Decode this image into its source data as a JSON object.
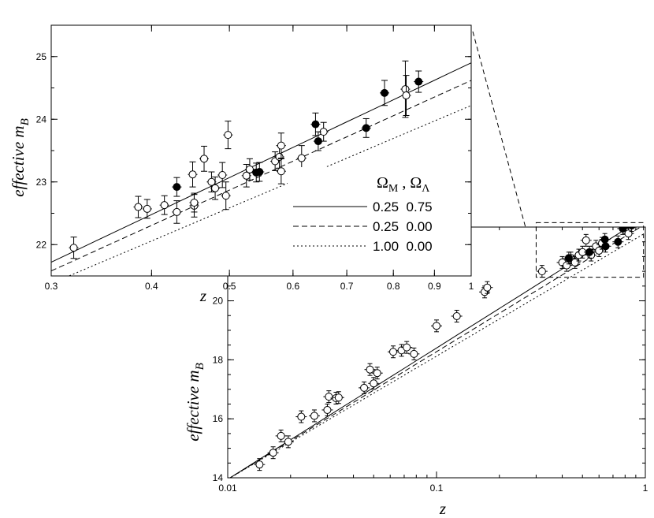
{
  "chart_data": [
    {
      "panel": "inset",
      "type": "scatter",
      "xlabel": "z",
      "ylabel": "effective m",
      "ylabel_sub": "B",
      "xscale": "log",
      "xlim": [
        0.3,
        1.0
      ],
      "ylim": [
        21.5,
        25.5
      ],
      "x_ticks": [
        0.3,
        0.4,
        0.5,
        0.6,
        0.7,
        0.8,
        0.9,
        1
      ],
      "x_tick_labels": [
        "0.3",
        "0.4",
        "0.5",
        "0.6",
        "0.7",
        "0.8",
        "0.9",
        "1"
      ],
      "y_ticks": [
        22,
        23,
        24,
        25
      ],
      "y_tick_labels": [
        "22",
        "23",
        "24",
        "25"
      ],
      "grid": false,
      "legend": {
        "placement": "lower-right",
        "header": {
          "sym1": "Ω",
          "sub1": "M",
          "sep": " , ",
          "sym2": "Ω",
          "sub2": "Λ"
        },
        "entries": [
          {
            "style": "solid",
            "label": "0.25  0.75"
          },
          {
            "style": "dashed",
            "label": "0.25  0.00"
          },
          {
            "style": "dotted",
            "label": "1.00  0.00"
          }
        ]
      },
      "series": [
        {
          "filled": false,
          "points": [
            [
              0.32,
              21.95,
              0.17
            ],
            [
              0.385,
              22.6,
              0.17
            ],
            [
              0.395,
              22.57,
              0.15
            ],
            [
              0.415,
              22.63,
              0.15
            ],
            [
              0.43,
              22.52,
              0.18
            ],
            [
              0.45,
              23.12,
              0.2
            ],
            [
              0.452,
              22.62,
              0.18
            ],
            [
              0.452,
              22.67,
              0.15
            ],
            [
              0.465,
              23.37,
              0.2
            ],
            [
              0.475,
              23.0,
              0.16
            ],
            [
              0.48,
              22.9,
              0.18
            ],
            [
              0.49,
              23.11,
              0.2
            ],
            [
              0.495,
              22.78,
              0.22
            ],
            [
              0.498,
              23.75,
              0.22
            ],
            [
              0.525,
              23.1,
              0.18
            ],
            [
              0.53,
              23.2,
              0.17
            ],
            [
              0.57,
              23.33,
              0.15
            ],
            [
              0.577,
              23.4,
              0.18
            ],
            [
              0.58,
              23.58,
              0.2
            ],
            [
              0.58,
              23.17,
              0.2
            ],
            [
              0.615,
              23.38,
              0.2
            ],
            [
              0.655,
              23.8,
              0.15
            ],
            [
              0.828,
              24.48,
              0.45
            ],
            [
              0.83,
              24.38,
              0.32
            ]
          ]
        },
        {
          "filled": true,
          "points": [
            [
              0.43,
              22.92,
              0.15
            ],
            [
              0.54,
              23.15,
              0.15
            ],
            [
              0.545,
              23.16,
              0.15
            ],
            [
              0.64,
              23.92,
              0.18
            ],
            [
              0.645,
              23.65,
              0.15
            ],
            [
              0.74,
              23.86,
              0.15
            ],
            [
              0.78,
              24.42,
              0.2
            ],
            [
              0.86,
              24.6,
              0.17
            ]
          ]
        }
      ],
      "curves": [
        {
          "style": "solid",
          "x": [
            0.3,
            1.0
          ],
          "y": [
            21.72,
            24.9
          ]
        },
        {
          "style": "dashed",
          "x": [
            0.3,
            1.0
          ],
          "y": [
            21.58,
            24.62
          ]
        },
        {
          "style": "dotted",
          "x": [
            0.3,
            1.0
          ],
          "y": [
            21.38,
            24.22
          ]
        }
      ]
    },
    {
      "panel": "main",
      "type": "scatter",
      "xlabel": "z",
      "ylabel": "effective m",
      "ylabel_sub": "B",
      "xscale": "log",
      "xlim": [
        0.01,
        1.0
      ],
      "ylim": [
        14,
        22.5
      ],
      "x_ticks": [
        0.01,
        0.1,
        1
      ],
      "x_tick_labels": [
        "0.01",
        "0.1",
        "1"
      ],
      "y_ticks": [
        14,
        16,
        18,
        20
      ],
      "y_tick_labels": [
        "14",
        "16",
        "18",
        "20"
      ],
      "grid": false,
      "zoom_box": {
        "x": [
          0.3,
          0.98
        ],
        "y": [
          20.8,
          22.65
        ]
      },
      "series": [
        {
          "filled": false,
          "points": [
            [
              0.0142,
              14.45,
              0.2
            ],
            [
              0.0165,
              14.85,
              0.2
            ],
            [
              0.018,
              15.42,
              0.2
            ],
            [
              0.0195,
              15.22,
              0.2
            ],
            [
              0.0225,
              16.07,
              0.2
            ],
            [
              0.026,
              16.1,
              0.2
            ],
            [
              0.03,
              16.3,
              0.2
            ],
            [
              0.0305,
              16.75,
              0.2
            ],
            [
              0.033,
              16.7,
              0.2
            ],
            [
              0.034,
              16.72,
              0.2
            ],
            [
              0.045,
              17.05,
              0.2
            ],
            [
              0.048,
              17.67,
              0.2
            ],
            [
              0.05,
              17.2,
              0.2
            ],
            [
              0.052,
              17.55,
              0.2
            ],
            [
              0.062,
              18.27,
              0.2
            ],
            [
              0.068,
              18.32,
              0.2
            ],
            [
              0.072,
              18.42,
              0.2
            ],
            [
              0.078,
              18.2,
              0.2
            ],
            [
              0.1,
              19.15,
              0.2
            ],
            [
              0.125,
              19.48,
              0.2
            ],
            [
              0.17,
              20.3,
              0.2
            ],
            [
              0.175,
              20.45,
              0.2
            ],
            [
              0.32,
              21.0,
              0.2
            ],
            [
              0.4,
              21.3,
              0.2
            ],
            [
              0.42,
              21.2,
              0.2
            ],
            [
              0.44,
              21.45,
              0.2
            ],
            [
              0.46,
              21.3,
              0.2
            ],
            [
              0.48,
              21.55,
              0.2
            ],
            [
              0.5,
              21.65,
              0.2
            ],
            [
              0.52,
              22.05,
              0.2
            ],
            [
              0.55,
              21.55,
              0.2
            ],
            [
              0.58,
              21.85,
              0.2
            ],
            [
              0.6,
              21.7,
              0.2
            ],
            [
              0.62,
              21.95,
              0.2
            ],
            [
              0.83,
              22.28,
              0.2
            ]
          ]
        },
        {
          "filled": true,
          "points": [
            [
              0.43,
              21.45,
              0.2
            ],
            [
              0.54,
              21.65,
              0.2
            ],
            [
              0.64,
              22.08,
              0.2
            ],
            [
              0.645,
              21.85,
              0.2
            ],
            [
              0.74,
              22.0,
              0.2
            ],
            [
              0.78,
              22.45,
              0.2
            ],
            [
              0.86,
              22.55,
              0.2
            ]
          ]
        }
      ],
      "curves": [
        {
          "style": "solid",
          "x": [
            0.01,
            1.0
          ],
          "y": [
            13.95,
            22.85
          ]
        },
        {
          "style": "dashed",
          "x": [
            0.01,
            1.0
          ],
          "y": [
            13.95,
            22.6
          ]
        },
        {
          "style": "dotted",
          "x": [
            0.01,
            1.0
          ],
          "y": [
            13.95,
            22.3
          ]
        }
      ]
    }
  ]
}
